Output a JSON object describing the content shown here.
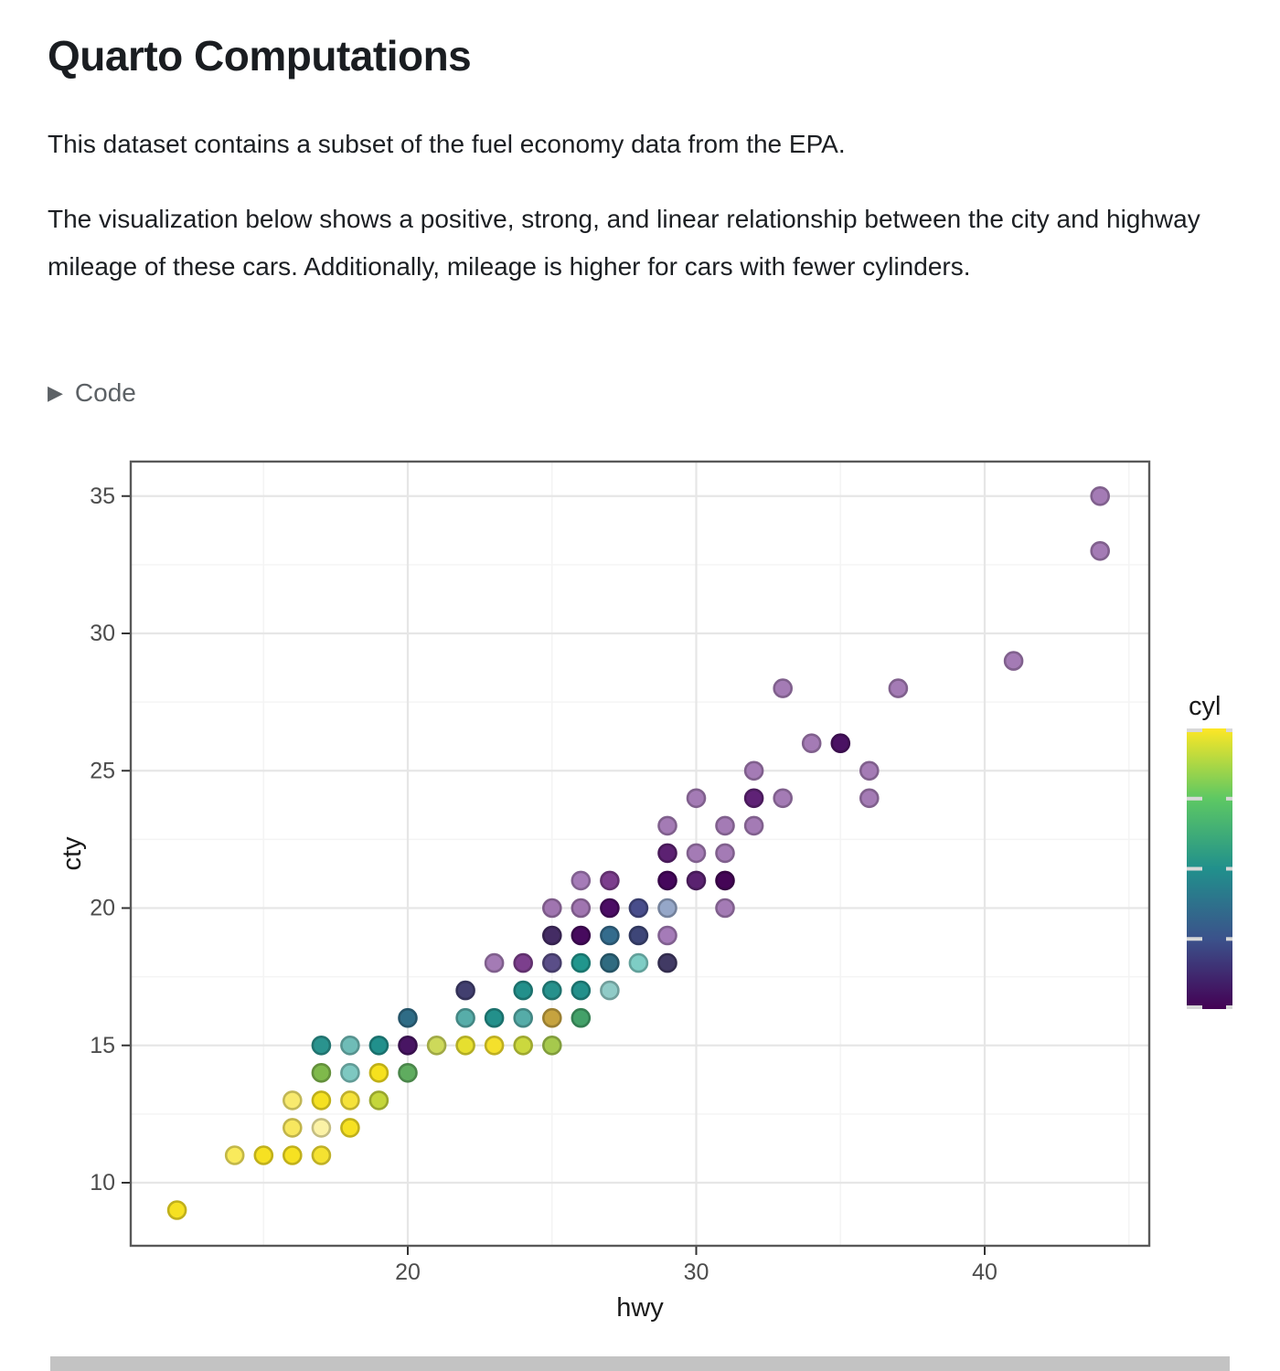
{
  "page": {
    "title": "Quarto Computations",
    "paragraph1": "This dataset contains a subset of the fuel economy data from the EPA.",
    "paragraph2": "The visualization below shows a positive, strong, and linear relationship between the city and highway mileage of these cars. Additionally, mileage is higher for cars with fewer cylinders.",
    "code_label": "Code"
  },
  "chart_data": {
    "type": "scatter",
    "title": "",
    "xlabel": "hwy",
    "ylabel": "cty",
    "xlim": [
      10.4,
      45.7
    ],
    "ylim": [
      7.6,
      36.3
    ],
    "x_ticks": [
      20,
      30,
      40
    ],
    "x_minor": [
      15,
      25,
      35,
      45
    ],
    "y_ticks": [
      10,
      15,
      20,
      25,
      30,
      35
    ],
    "y_minor": [
      12.5,
      17.5,
      22.5,
      27.5,
      32.5
    ],
    "grid": "on",
    "legend": {
      "title": "cyl",
      "position": "right",
      "type": "colorbar",
      "min": 4,
      "max": 8,
      "tick_values": [
        4,
        5,
        6,
        7,
        8
      ],
      "scale_name": "viridis",
      "scale_stops": {
        "4": "#440154",
        "5": "#3B528B",
        "6": "#21908C",
        "7": "#5DC863",
        "8": "#FDE725"
      }
    },
    "points": [
      {
        "hwy": 12,
        "cty": 9,
        "color": "#F6E122"
      },
      {
        "hwy": 14,
        "cty": 11,
        "color": "#F9EA5C"
      },
      {
        "hwy": 15,
        "cty": 11,
        "color": "#F6E122"
      },
      {
        "hwy": 16,
        "cty": 11,
        "color": "#F6E122"
      },
      {
        "hwy": 17,
        "cty": 11,
        "color": "#F5E231"
      },
      {
        "hwy": 16,
        "cty": 12,
        "color": "#F7E75F"
      },
      {
        "hwy": 17,
        "cty": 12,
        "color": "#FBF2A6"
      },
      {
        "hwy": 18,
        "cty": 12,
        "color": "#F6E122"
      },
      {
        "hwy": 16,
        "cty": 13,
        "color": "#F8EA6E"
      },
      {
        "hwy": 17,
        "cty": 13,
        "color": "#F5E122"
      },
      {
        "hwy": 18,
        "cty": 13,
        "color": "#F5E23A"
      },
      {
        "hwy": 19,
        "cty": 13,
        "color": "#C4D63B"
      },
      {
        "hwy": 17,
        "cty": 14,
        "color": "#7FB94B"
      },
      {
        "hwy": 18,
        "cty": 14,
        "color": "#7EC8C1"
      },
      {
        "hwy": 19,
        "cty": 14,
        "color": "#F6E11E"
      },
      {
        "hwy": 20,
        "cty": 14,
        "color": "#5FAC5F"
      },
      {
        "hwy": 17,
        "cty": 15,
        "color": "#2A938E"
      },
      {
        "hwy": 18,
        "cty": 15,
        "color": "#6FBCB7"
      },
      {
        "hwy": 19,
        "cty": 15,
        "color": "#21908C"
      },
      {
        "hwy": 20,
        "cty": 15,
        "color": "#481563"
      },
      {
        "hwy": 21,
        "cty": 15,
        "color": "#CDD95A"
      },
      {
        "hwy": 22,
        "cty": 15,
        "color": "#E6DF2F"
      },
      {
        "hwy": 23,
        "cty": 15,
        "color": "#F4E02C"
      },
      {
        "hwy": 24,
        "cty": 15,
        "color": "#CBD83E"
      },
      {
        "hwy": 25,
        "cty": 15,
        "color": "#A6C94D"
      },
      {
        "hwy": 20,
        "cty": 16,
        "color": "#2F6C86"
      },
      {
        "hwy": 22,
        "cty": 16,
        "color": "#57ADA9"
      },
      {
        "hwy": 23,
        "cty": 16,
        "color": "#23908B"
      },
      {
        "hwy": 24,
        "cty": 16,
        "color": "#55ACA8"
      },
      {
        "hwy": 25,
        "cty": 16,
        "color": "#C6A33F"
      },
      {
        "hwy": 26,
        "cty": 16,
        "color": "#43A169"
      },
      {
        "hwy": 22,
        "cty": 17,
        "color": "#423F6F"
      },
      {
        "hwy": 24,
        "cty": 17,
        "color": "#23908B"
      },
      {
        "hwy": 25,
        "cty": 17,
        "color": "#26918C"
      },
      {
        "hwy": 26,
        "cty": 17,
        "color": "#23908B"
      },
      {
        "hwy": 27,
        "cty": 17,
        "color": "#90CBC7"
      },
      {
        "hwy": 23,
        "cty": 18,
        "color": "#A47BB5"
      },
      {
        "hwy": 24,
        "cty": 18,
        "color": "#7C3F8D"
      },
      {
        "hwy": 25,
        "cty": 18,
        "color": "#5A4E88"
      },
      {
        "hwy": 26,
        "cty": 18,
        "color": "#21968D"
      },
      {
        "hwy": 27,
        "cty": 18,
        "color": "#2F6B80"
      },
      {
        "hwy": 28,
        "cty": 18,
        "color": "#7ECDC5"
      },
      {
        "hwy": 29,
        "cty": 18,
        "color": "#413A64"
      },
      {
        "hwy": 25,
        "cty": 19,
        "color": "#442C64"
      },
      {
        "hwy": 26,
        "cty": 19,
        "color": "#470A5E"
      },
      {
        "hwy": 27,
        "cty": 19,
        "color": "#346C8D"
      },
      {
        "hwy": 28,
        "cty": 19,
        "color": "#3E4678"
      },
      {
        "hwy": 29,
        "cty": 19,
        "color": "#A57BB8"
      },
      {
        "hwy": 25,
        "cty": 20,
        "color": "#A075B0"
      },
      {
        "hwy": 26,
        "cty": 20,
        "color": "#A075B0"
      },
      {
        "hwy": 27,
        "cty": 20,
        "color": "#4C0D65"
      },
      {
        "hwy": 28,
        "cty": 20,
        "color": "#484D8B"
      },
      {
        "hwy": 29,
        "cty": 20,
        "color": "#95A7C8"
      },
      {
        "hwy": 31,
        "cty": 20,
        "color": "#A47BB5"
      },
      {
        "hwy": 26,
        "cty": 21,
        "color": "#A57BB8"
      },
      {
        "hwy": 27,
        "cty": 21,
        "color": "#7C3E8D"
      },
      {
        "hwy": 29,
        "cty": 21,
        "color": "#45075C"
      },
      {
        "hwy": 30,
        "cty": 21,
        "color": "#5A2270"
      },
      {
        "hwy": 31,
        "cty": 21,
        "color": "#440556"
      },
      {
        "hwy": 29,
        "cty": 22,
        "color": "#5C2172"
      },
      {
        "hwy": 30,
        "cty": 22,
        "color": "#A47BB5"
      },
      {
        "hwy": 31,
        "cty": 22,
        "color": "#A47BB5"
      },
      {
        "hwy": 29,
        "cty": 23,
        "color": "#A47BB5"
      },
      {
        "hwy": 31,
        "cty": 23,
        "color": "#A47BB5"
      },
      {
        "hwy": 32,
        "cty": 23,
        "color": "#A47BB5"
      },
      {
        "hwy": 30,
        "cty": 24,
        "color": "#A47BB5"
      },
      {
        "hwy": 32,
        "cty": 24,
        "color": "#5F2276"
      },
      {
        "hwy": 33,
        "cty": 24,
        "color": "#A47BB5"
      },
      {
        "hwy": 36,
        "cty": 24,
        "color": "#A47BB5"
      },
      {
        "hwy": 32,
        "cty": 25,
        "color": "#A47BB5"
      },
      {
        "hwy": 36,
        "cty": 25,
        "color": "#A47BB5"
      },
      {
        "hwy": 34,
        "cty": 26,
        "color": "#A47BB5"
      },
      {
        "hwy": 35,
        "cty": 26,
        "color": "#4A1263"
      },
      {
        "hwy": 33,
        "cty": 28,
        "color": "#A47BB5"
      },
      {
        "hwy": 37,
        "cty": 28,
        "color": "#A47BB5"
      },
      {
        "hwy": 41,
        "cty": 29,
        "color": "#A47BB5"
      },
      {
        "hwy": 44,
        "cty": 33,
        "color": "#A47BB5"
      },
      {
        "hwy": 44,
        "cty": 35,
        "color": "#A47BB5"
      }
    ]
  }
}
